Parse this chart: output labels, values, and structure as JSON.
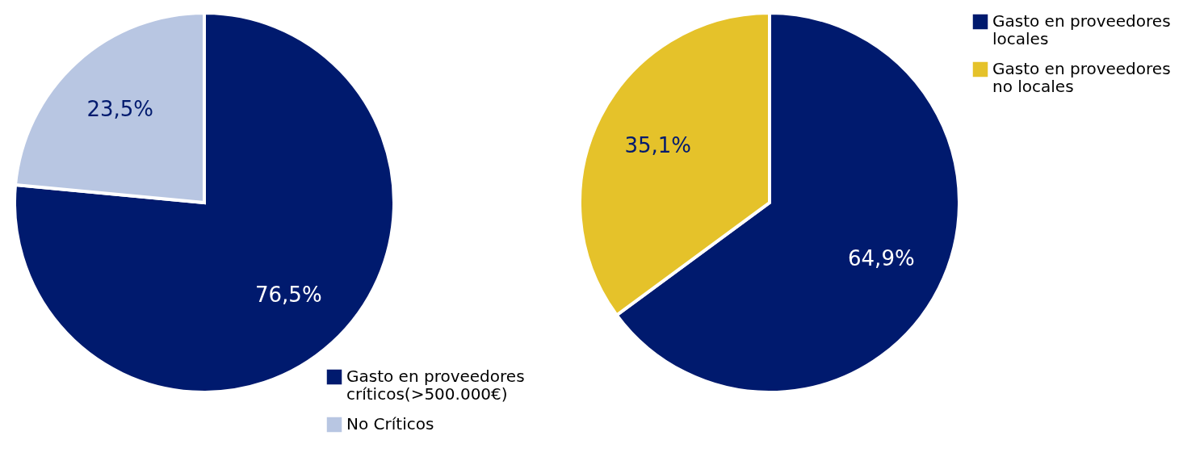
{
  "chart_data": [
    {
      "type": "pie",
      "categories": [
        "Gasto en proveedores críticos(>500.000€)",
        "No Críticos"
      ],
      "values": [
        76.5,
        23.5
      ],
      "colors": [
        "#001a6e",
        "#b8c6e2"
      ],
      "value_labels": [
        "76,5%",
        "23,5%"
      ],
      "legend": "bottom right"
    },
    {
      "type": "pie",
      "categories": [
        "Gasto en proveedores locales",
        "Gasto en proveedores no locales"
      ],
      "values": [
        64.9,
        35.1
      ],
      "colors": [
        "#001a6e",
        "#e5c22a"
      ],
      "value_labels": [
        "64,9%",
        "35,1%"
      ],
      "legend": "top right"
    }
  ]
}
